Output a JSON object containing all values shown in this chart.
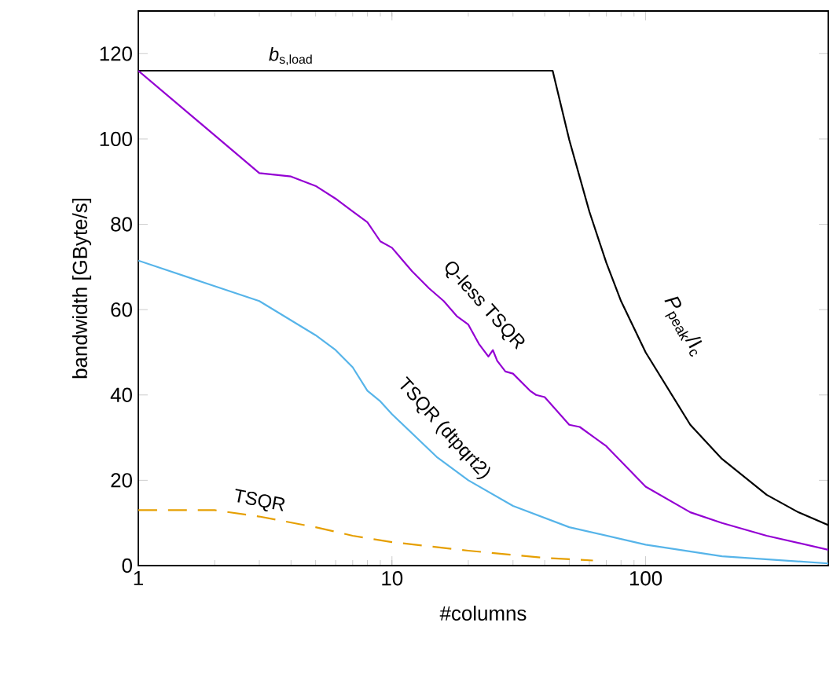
{
  "chart_data": {
    "type": "line",
    "xlabel": "#columns",
    "ylabel": "bandwidth [GByte/s]",
    "log": "x",
    "marker": "none",
    "xlim": [
      1,
      525
    ],
    "ylim": [
      0,
      130
    ],
    "xticks": [
      1,
      10,
      100
    ],
    "yticks": [
      0,
      20,
      40,
      60,
      80,
      100,
      120
    ],
    "series": [
      {
        "color": "#000000",
        "x": [
          1,
          43,
          50,
          60,
          70,
          80,
          100,
          150,
          200,
          300,
          400,
          525
        ],
        "values": [
          116,
          116,
          99.8,
          83,
          71,
          62,
          50,
          33,
          25,
          16.6,
          12.5,
          9.5
        ]
      },
      {
        "name": "Q-less TSQR",
        "color": "#9400d3",
        "x": [
          1,
          3,
          4,
          5,
          6,
          7,
          8,
          9,
          10,
          12,
          14,
          16,
          18,
          20,
          22,
          24,
          25,
          26,
          28,
          30,
          35,
          37,
          40,
          50,
          55,
          70,
          100,
          150,
          200,
          300,
          525
        ],
        "values": [
          116,
          92,
          91.2,
          89,
          86,
          83,
          80.5,
          76,
          74.5,
          69,
          65,
          62,
          58.5,
          56.5,
          52,
          49,
          50.5,
          48,
          45.5,
          45,
          41,
          40,
          39.5,
          33,
          32.5,
          28,
          18.5,
          12.5,
          10,
          7,
          3.7
        ]
      },
      {
        "name": "TSQR (dtpqrt2)",
        "color": "#56b4e9",
        "x": [
          1,
          3,
          5,
          6,
          7,
          8,
          9,
          10,
          15,
          20,
          30,
          50,
          100,
          200,
          525
        ],
        "values": [
          71.5,
          62,
          54,
          50.5,
          46.5,
          41,
          38.5,
          35.5,
          25.5,
          20,
          14,
          9,
          4.9,
          2.2,
          0.5
        ]
      },
      {
        "name": "TSQR",
        "color": "#e69f00",
        "line_style": "dashed",
        "x": [
          1,
          2,
          3,
          5,
          7,
          10,
          20,
          40,
          62
        ],
        "values": [
          13,
          13,
          11.5,
          9,
          7,
          5.5,
          3.5,
          1.8,
          1.2
        ]
      }
    ],
    "annotations": [
      {
        "text": "*b*$_{s,load}$",
        "x": 4,
        "y": 116
      },
      "*P*$_{peak}$/I$_{c}$"
    ]
  }
}
